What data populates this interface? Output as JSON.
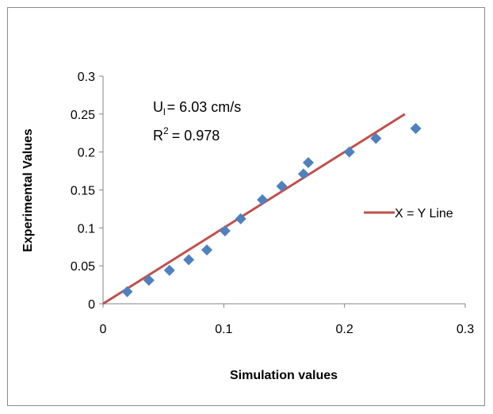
{
  "chart_data": {
    "type": "scatter",
    "title": "",
    "xlabel": "Simulation values",
    "ylabel": "Experimental Values",
    "xlim": [
      0,
      0.3
    ],
    "ylim": [
      0,
      0.3
    ],
    "x_ticks": [
      "0",
      "0.1",
      "0.2",
      "0.3"
    ],
    "y_ticks": [
      "0",
      "0.05",
      "0.1",
      "0.15",
      "0.2",
      "0.25",
      "0.3"
    ],
    "grid": false,
    "legend_position": "right",
    "series": [
      {
        "name": "",
        "kind": "scatter",
        "color": "#4F81BD",
        "marker": "diamond",
        "x": [
          0.02,
          0.038,
          0.055,
          0.071,
          0.086,
          0.101,
          0.114,
          0.132,
          0.148,
          0.166,
          0.17,
          0.204,
          0.226,
          0.259
        ],
        "y": [
          0.016,
          0.031,
          0.044,
          0.058,
          0.071,
          0.096,
          0.112,
          0.137,
          0.155,
          0.171,
          0.186,
          0.2,
          0.218,
          0.231
        ]
      },
      {
        "name": "X = Y Line",
        "kind": "line",
        "color": "#C0504D",
        "x": [
          0,
          0.25
        ],
        "y": [
          0,
          0.25
        ]
      }
    ],
    "annotations": {
      "u_prefix": "U",
      "u_sub": "l",
      "u_value": "= 6.03 cm/s",
      "r_prefix": "R",
      "r_sup": "2",
      "r_value": "= 0.978"
    }
  }
}
